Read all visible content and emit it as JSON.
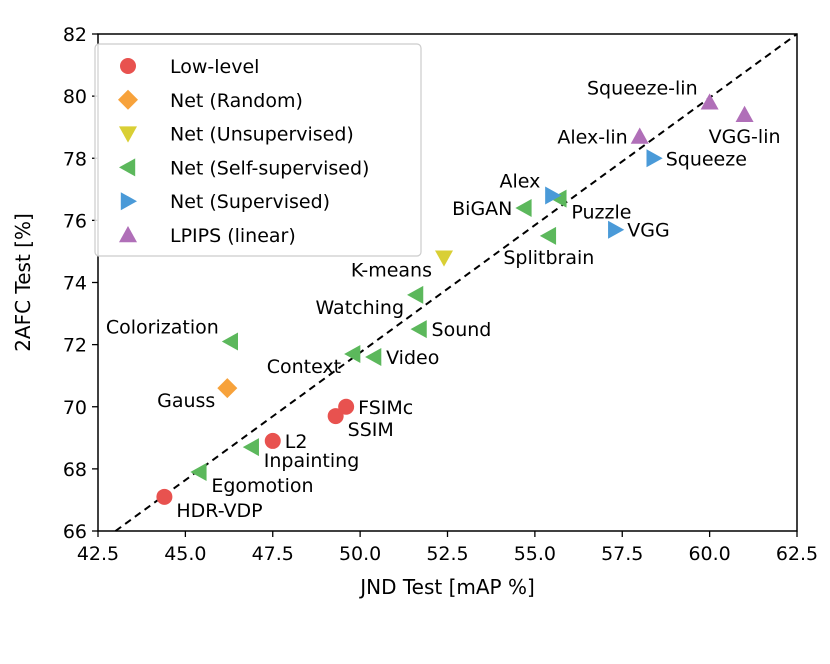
{
  "chart_data": {
    "type": "scatter",
    "title": "",
    "xlabel": "JND Test [mAP %]",
    "ylabel": "2AFC Test [%]",
    "xlim": [
      42.5,
      62.5
    ],
    "ylim": [
      66,
      82
    ],
    "xticks": [
      42.5,
      45.0,
      47.5,
      50.0,
      52.5,
      55.0,
      57.5,
      60.0,
      62.5
    ],
    "xtick_labels": [
      "42.5",
      "45.0",
      "47.5",
      "50.0",
      "52.5",
      "55.0",
      "57.5",
      "60.0",
      "62.5"
    ],
    "yticks": [
      66,
      68,
      70,
      72,
      74,
      76,
      78,
      80,
      82
    ],
    "ytick_labels": [
      "66",
      "68",
      "70",
      "72",
      "74",
      "76",
      "78",
      "80",
      "82"
    ],
    "grid": false,
    "legend_position": "top-left",
    "reference_line": {
      "style": "dashed",
      "from": [
        43,
        66
      ],
      "to": [
        62.5,
        82
      ]
    },
    "series": [
      {
        "name": "Low-level",
        "marker": "circle",
        "color": "#e8524f",
        "points": [
          {
            "label": "HDR-VDP",
            "x": 44.4,
            "y": 67.1,
            "label_pos": "right-below"
          },
          {
            "label": "L2",
            "x": 47.5,
            "y": 68.9,
            "label_pos": "right"
          },
          {
            "label": "SSIM",
            "x": 49.3,
            "y": 69.7,
            "label_pos": "right-below"
          },
          {
            "label": "FSIMc",
            "x": 49.6,
            "y": 70.0,
            "label_pos": "right"
          }
        ]
      },
      {
        "name": "Net (Random)",
        "marker": "diamond",
        "color": "#f7a23b",
        "points": [
          {
            "label": "Gauss",
            "x": 46.2,
            "y": 70.6,
            "label_pos": "left-below"
          }
        ]
      },
      {
        "name": "Net (Unsupervised)",
        "marker": "triangle-down",
        "color": "#d9cf35",
        "points": [
          {
            "label": "K-means",
            "x": 52.4,
            "y": 74.8,
            "label_pos": "left-below"
          }
        ]
      },
      {
        "name": "Net (Self-supervised)",
        "marker": "triangle-left",
        "color": "#5cb85c",
        "points": [
          {
            "label": "Colorization",
            "x": 46.3,
            "y": 72.1,
            "label_pos": "left-above"
          },
          {
            "label": "Egomotion",
            "x": 45.4,
            "y": 67.9,
            "label_pos": "right-below"
          },
          {
            "label": "Inpainting",
            "x": 46.9,
            "y": 68.7,
            "label_pos": "right-below"
          },
          {
            "label": "Context",
            "x": 49.8,
            "y": 71.7,
            "label_pos": "left-below"
          },
          {
            "label": "Video",
            "x": 50.4,
            "y": 71.6,
            "label_pos": "right"
          },
          {
            "label": "Sound",
            "x": 51.7,
            "y": 72.5,
            "label_pos": "right"
          },
          {
            "label": "Watching",
            "x": 51.6,
            "y": 73.6,
            "label_pos": "left-below"
          },
          {
            "label": "BiGAN",
            "x": 54.7,
            "y": 76.4,
            "label_pos": "left"
          },
          {
            "label": "Puzzle",
            "x": 55.7,
            "y": 76.7,
            "label_pos": "right-below"
          },
          {
            "label": "Splitbrain",
            "x": 55.4,
            "y": 75.5,
            "label_pos": "below"
          }
        ]
      },
      {
        "name": "Net (Supervised)",
        "marker": "triangle-right",
        "color": "#4a9ad8",
        "points": [
          {
            "label": "Alex",
            "x": 55.5,
            "y": 76.8,
            "label_pos": "left-above"
          },
          {
            "label": "VGG",
            "x": 57.3,
            "y": 75.7,
            "label_pos": "right"
          },
          {
            "label": "Squeeze",
            "x": 58.4,
            "y": 78.0,
            "label_pos": "right"
          }
        ]
      },
      {
        "name": "LPIPS (linear)",
        "marker": "triangle-up",
        "color": "#b06fb8",
        "points": [
          {
            "label": "Alex-lin",
            "x": 58.0,
            "y": 78.7,
            "label_pos": "left"
          },
          {
            "label": "Squeeze-lin",
            "x": 60.0,
            "y": 79.8,
            "label_pos": "left-above"
          },
          {
            "label": "VGG-lin",
            "x": 61.0,
            "y": 79.4,
            "label_pos": "below"
          }
        ]
      }
    ]
  }
}
